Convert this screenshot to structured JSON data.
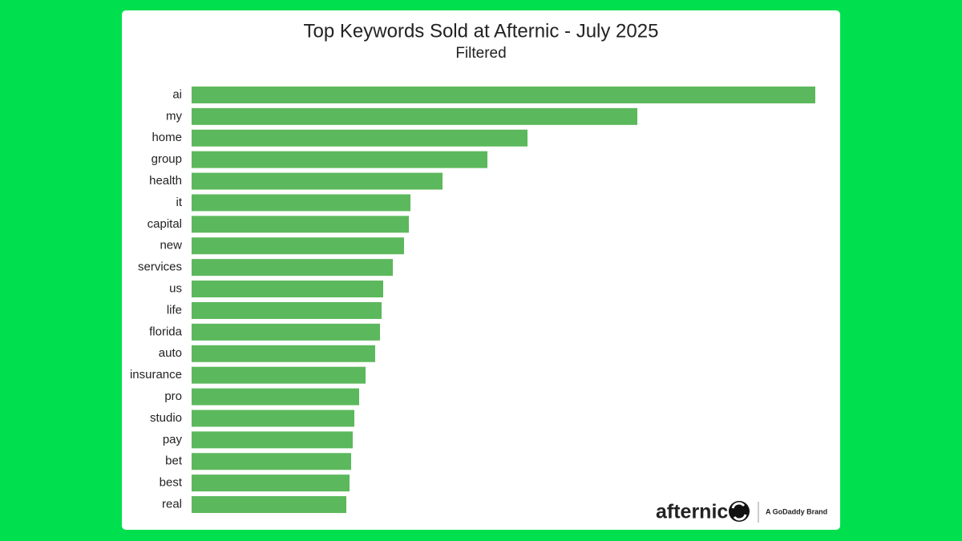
{
  "chart_data": {
    "type": "bar",
    "orientation": "horizontal",
    "title": "Top Keywords Sold at Afternic - July 2025",
    "subtitle": "Filtered",
    "categories": [
      "ai",
      "my",
      "home",
      "group",
      "health",
      "it",
      "capital",
      "new",
      "services",
      "us",
      "life",
      "florida",
      "auto",
      "insurance",
      "pro",
      "studio",
      "pay",
      "bet",
      "best",
      "real"
    ],
    "values": [
      778,
      556,
      419,
      369,
      313,
      273,
      271,
      265,
      251,
      239,
      237,
      235,
      229,
      217,
      209,
      203,
      201,
      199,
      197,
      193
    ],
    "color": "#5cb85c"
  },
  "branding": {
    "logo": "afternic",
    "tagline": "A GoDaddy Brand"
  }
}
